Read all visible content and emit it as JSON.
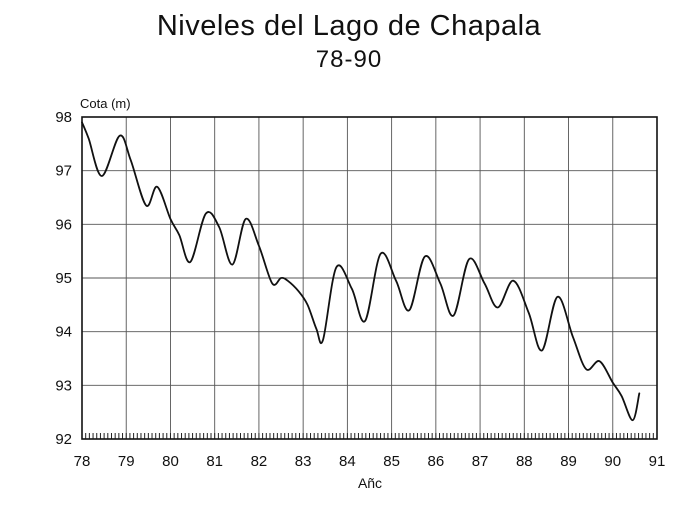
{
  "chart_data": {
    "type": "line",
    "title": "Niveles del Lago de Chapala",
    "subtitle": "78-90",
    "xlabel": "Añc",
    "ylabel": "Cota (m)",
    "xlim": [
      78,
      91
    ],
    "ylim": [
      92,
      98
    ],
    "x_ticks": [
      "78",
      "79",
      "80",
      "81",
      "82",
      "83",
      "84",
      "85",
      "86",
      "87",
      "88",
      "89",
      "90",
      "91"
    ],
    "y_ticks": [
      "92",
      "93",
      "94",
      "95",
      "96",
      "97",
      "98"
    ],
    "grid": true,
    "legend": "none",
    "line_color": "#111111",
    "series": [
      {
        "x": [
          78.0,
          78.15,
          78.45,
          78.85,
          79.1,
          79.45,
          79.7,
          80.0,
          80.2,
          80.45,
          80.8,
          81.1,
          81.4,
          81.7,
          82.0,
          82.3,
          82.5,
          82.65,
          82.9,
          83.1,
          83.3,
          83.45,
          83.75,
          84.1,
          84.4,
          84.75,
          85.1,
          85.4,
          85.75,
          86.1,
          86.4,
          86.75,
          87.1,
          87.4,
          87.75,
          88.1,
          88.4,
          88.75,
          89.1,
          89.4,
          89.7,
          90.0,
          90.2,
          90.45,
          90.6
        ],
        "y": [
          97.9,
          97.6,
          96.9,
          97.65,
          97.2,
          96.35,
          96.7,
          96.1,
          95.8,
          95.3,
          96.2,
          95.95,
          95.25,
          96.1,
          95.6,
          94.9,
          95.0,
          94.95,
          94.75,
          94.5,
          94.05,
          93.85,
          95.2,
          94.8,
          94.2,
          95.45,
          94.95,
          94.4,
          95.4,
          94.9,
          94.3,
          95.35,
          94.9,
          94.45,
          94.95,
          94.35,
          93.65,
          94.65,
          93.9,
          93.3,
          93.45,
          93.05,
          92.8,
          92.35,
          92.85
        ]
      }
    ]
  }
}
